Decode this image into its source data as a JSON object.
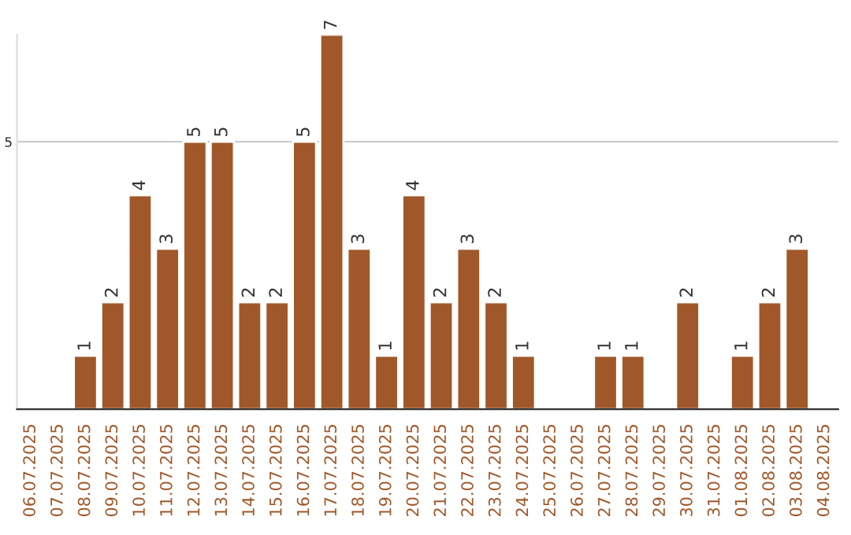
{
  "chart_data": {
    "type": "bar",
    "categories": [
      "06.07.2025",
      "07.07.2025",
      "08.07.2025",
      "09.07.2025",
      "10.07.2025",
      "11.07.2025",
      "12.07.2025",
      "13.07.2025",
      "14.07.2025",
      "15.07.2025",
      "16.07.2025",
      "17.07.2025",
      "18.07.2025",
      "19.07.2025",
      "20.07.2025",
      "21.07.2025",
      "22.07.2025",
      "23.07.2025",
      "24.07.2025",
      "25.07.2025",
      "26.07.2025",
      "27.07.2025",
      "28.07.2025",
      "29.07.2025",
      "30.07.2025",
      "31.07.2025",
      "01.08.2025",
      "02.08.2025",
      "03.08.2025",
      "04.08.2025"
    ],
    "values": [
      null,
      null,
      1,
      2,
      4,
      3,
      5,
      5,
      2,
      2,
      5,
      7,
      3,
      1,
      4,
      2,
      3,
      2,
      1,
      null,
      null,
      1,
      1,
      null,
      2,
      null,
      1,
      2,
      3,
      null
    ],
    "color": "#a0582a",
    "ylim": [
      0,
      7
    ],
    "yticks": [
      5
    ],
    "grid": "y",
    "data_labels": true
  }
}
